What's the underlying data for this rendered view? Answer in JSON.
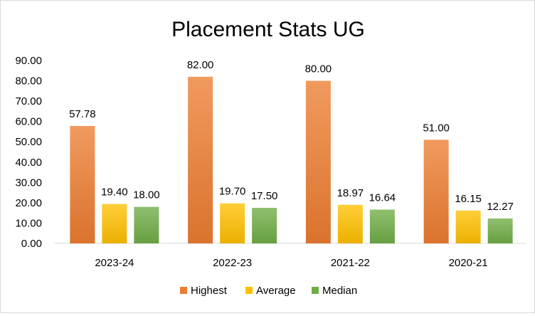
{
  "chart_data": {
    "type": "bar",
    "title": "Placement Stats UG",
    "categories": [
      "2023-24",
      "2022-23",
      "2021-22",
      "2020-21"
    ],
    "series": [
      {
        "name": "Highest",
        "values": [
          57.78,
          82.0,
          80.0,
          51.0
        ],
        "color": "#ed7d31"
      },
      {
        "name": "Average",
        "values": [
          19.4,
          19.7,
          18.97,
          16.15
        ],
        "color": "#ffc000"
      },
      {
        "name": "Median",
        "values": [
          18.0,
          17.5,
          16.64,
          12.27
        ],
        "color": "#70ad47"
      }
    ],
    "ylim": [
      0,
      90
    ],
    "yticks": [
      "0.00",
      "10.00",
      "20.00",
      "30.00",
      "40.00",
      "50.00",
      "60.00",
      "70.00",
      "80.00",
      "90.00"
    ],
    "data_labels": [
      [
        "57.78",
        "19.40",
        "18.00"
      ],
      [
        "82.00",
        "19.70",
        "17.50"
      ],
      [
        "80.00",
        "18.97",
        "16.64"
      ],
      [
        "51.00",
        "16.15",
        "12.27"
      ]
    ],
    "grid": false,
    "legend_position": "bottom"
  }
}
